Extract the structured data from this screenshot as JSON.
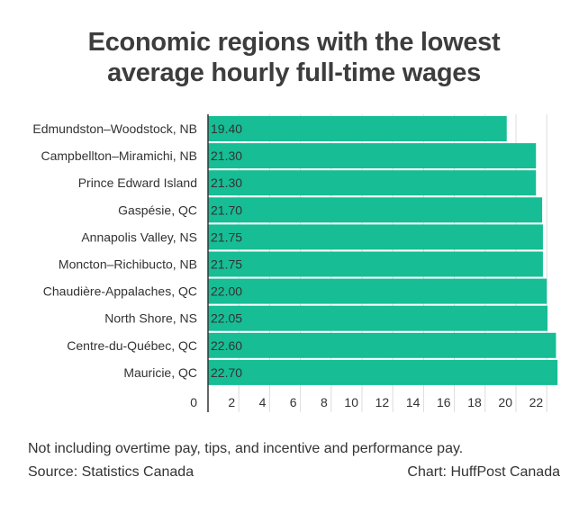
{
  "title_lines": [
    "Economic regions with the lowest",
    "average hourly full-time wages"
  ],
  "footnote": "Not including overtime pay, tips, and incentive and performance pay.",
  "source": "Source: Statistics Canada",
  "credit": "Chart: HuffPost Canada",
  "colors": {
    "bar": "#16bd95",
    "text": "#333333",
    "grid": "#dddddd",
    "axis": "#333333"
  },
  "chart_data": {
    "type": "bar",
    "orientation": "horizontal",
    "categories": [
      "Edmundston–Woodstock, NB",
      "Campbellton–Miramichi, NB",
      "Prince Edward Island",
      "Gaspésie, QC",
      "Annapolis Valley, NS",
      "Moncton–Richibucto, NB",
      "Chaudière-Appalaches, QC",
      "North Shore, NS",
      "Centre-du-Québec, QC",
      "Mauricie, QC"
    ],
    "values": [
      19.4,
      21.3,
      21.3,
      21.7,
      21.75,
      21.75,
      22.0,
      22.05,
      22.6,
      22.7
    ],
    "value_labels": [
      "19.40",
      "21.30",
      "21.30",
      "21.70",
      "21.75",
      "21.75",
      "22.00",
      "22.05",
      "22.60",
      "22.70"
    ],
    "xlim": [
      0,
      22.7
    ],
    "xticks": [
      0,
      2,
      4,
      6,
      8,
      10,
      12,
      14,
      16,
      18,
      20,
      22
    ],
    "xtick_labels": [
      "0",
      "2",
      "4",
      "6",
      "8",
      "10",
      "12",
      "14",
      "16",
      "18",
      "20",
      "22"
    ],
    "grid": true,
    "legend": "none"
  }
}
